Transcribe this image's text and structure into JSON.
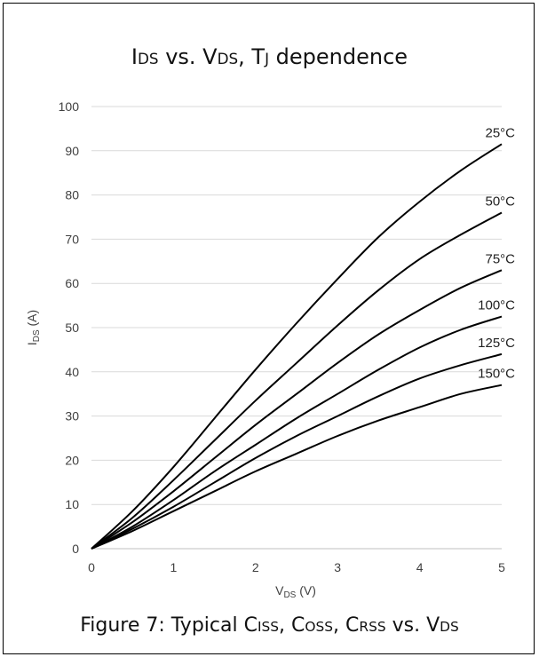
{
  "title": {
    "main": "I",
    "sub1": "DS",
    "mid1": " vs. V",
    "sub2": "DS",
    "mid2": ", T",
    "sub3": "J",
    "tail": " dependence"
  },
  "caption": {
    "text1": "Figure 7: Typical C",
    "sub1": "ISS",
    "text2": ", C",
    "sub2": "OSS",
    "text3": ", C",
    "sub3": "RSS",
    "text4": " vs. V",
    "sub4": "DS"
  },
  "chart_data": {
    "type": "line",
    "title": "IDS vs. VDS, TJ dependence",
    "xlabel": "VDS (V)",
    "ylabel": "IDS (A)",
    "xlim": [
      0,
      5
    ],
    "ylim": [
      0,
      100
    ],
    "x_ticks": [
      "0",
      "1",
      "2",
      "3",
      "4",
      "5"
    ],
    "y_ticks": [
      "0",
      "10",
      "20",
      "30",
      "40",
      "50",
      "60",
      "70",
      "80",
      "90",
      "100"
    ],
    "grid": true,
    "x": [
      0,
      0.5,
      1,
      1.5,
      2,
      2.5,
      3,
      3.5,
      4,
      4.5,
      5
    ],
    "series": [
      {
        "name": "25°C",
        "values": [
          0,
          8.5,
          18.5,
          29.5,
          40.5,
          51,
          61,
          70.5,
          78.5,
          85.5,
          91.5
        ]
      },
      {
        "name": "50°C",
        "values": [
          0,
          7,
          15.5,
          24.5,
          33.5,
          42,
          50.5,
          58.5,
          65.5,
          71,
          76
        ]
      },
      {
        "name": "75°C",
        "values": [
          0,
          6,
          13,
          20.5,
          28,
          35,
          42,
          48.5,
          54,
          59,
          63
        ]
      },
      {
        "name": "100°C",
        "values": [
          0,
          5,
          11,
          17.5,
          23.5,
          29.5,
          35,
          40.5,
          45.5,
          49.5,
          52.5
        ]
      },
      {
        "name": "125°C",
        "values": [
          0,
          4.5,
          9.5,
          15,
          20.5,
          25.5,
          30,
          34.5,
          38.5,
          41.5,
          44
        ]
      },
      {
        "name": "150°C",
        "values": [
          0,
          4,
          8.5,
          13,
          17.5,
          21.5,
          25.5,
          29,
          32,
          35,
          37
        ]
      }
    ],
    "line_color": "#000000",
    "grid_color": "#d9d9d9"
  }
}
